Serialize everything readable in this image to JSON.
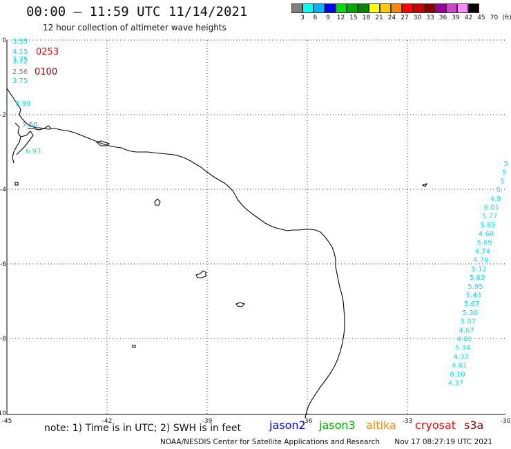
{
  "title": "00:00 – 11:59 UTC 11/14/2021",
  "subtitle": "12 hour collection of altimeter wave heights",
  "color_scale": {
    "labels": [
      "3",
      "6",
      "9",
      "12",
      "15",
      "18",
      "21",
      "24",
      "27",
      "30",
      "33",
      "36",
      "39",
      "42",
      "45",
      "70",
      "(ft)"
    ],
    "colors": [
      "#808080",
      "#00ffff",
      "#00b4ff",
      "#0000ff",
      "#00dd00",
      "#00aa00",
      "#008800",
      "#ffff00",
      "#ffcc00",
      "#ff8800",
      "#ff0000",
      "#cc0000",
      "#880000",
      "#990099",
      "#cc44cc",
      "#ff88ff",
      "#000000"
    ]
  },
  "map": {
    "x_ticks": [
      "-45",
      "-42",
      "-39",
      "-36",
      "-33",
      "-30"
    ],
    "y_ticks": [
      "0",
      "-2",
      "-4",
      "-6",
      "-8",
      "-10"
    ],
    "pass_times": [
      {
        "text": "0253",
        "color": "#ff0000"
      },
      {
        "text": "0100",
        "color": "#8b0000"
      }
    ],
    "left_track": [
      {
        "text": "3.55",
        "color": "#00e5ee"
      },
      {
        "text": "4.15",
        "color": "#00e5ee"
      },
      {
        "text": "3.75",
        "color": "#00e5ee"
      },
      {
        "text": "3.72",
        "color": "#00e5ee"
      },
      {
        "text": "2.56",
        "color": "#808080"
      },
      {
        "text": "3.75",
        "color": "#00e5ee"
      },
      {
        "text": "5.99",
        "color": "#00e5ee"
      },
      {
        "text": "7.50",
        "color": "#00b4ff"
      },
      {
        "text": "6.97",
        "color": "#00e5ee"
      }
    ],
    "right_track": [
      {
        "text": "5"
      },
      {
        "text": "5"
      },
      {
        "text": "5"
      },
      {
        "text": "5."
      },
      {
        "text": "4.9"
      },
      {
        "text": "6.01"
      },
      {
        "text": "5.77"
      },
      {
        "text": "5.85"
      },
      {
        "text": "4.68"
      },
      {
        "text": "5.69"
      },
      {
        "text": "4.74"
      },
      {
        "text": "4.79"
      },
      {
        "text": "5.12"
      },
      {
        "text": "5.63"
      },
      {
        "text": "5.95"
      },
      {
        "text": "5.43"
      },
      {
        "text": "5.67"
      },
      {
        "text": "5.30"
      },
      {
        "text": "5.07"
      },
      {
        "text": "4.67"
      },
      {
        "text": "4.81"
      },
      {
        "text": "5.34"
      },
      {
        "text": "4.32"
      },
      {
        "text": "4.81"
      },
      {
        "text": "6.10"
      },
      {
        "text": "4.37"
      }
    ],
    "track_color": "#00e5ee"
  },
  "note": "note: 1) Time is in UTC; 2) SWH is in feet",
  "satellites": [
    {
      "name": "jason2",
      "color": "#0000ff"
    },
    {
      "name": "jason3",
      "color": "#00aa00"
    },
    {
      "name": "altika",
      "color": "#ff8800"
    },
    {
      "name": "cryosat",
      "color": "#ff0000"
    },
    {
      "name": "s3a",
      "color": "#8b0000"
    }
  ],
  "footer": {
    "org": "NOAA/NESDIS Center for Satellite Applications and Research",
    "timestamp": "Nov 17 08:27:19 UTC 2021"
  }
}
